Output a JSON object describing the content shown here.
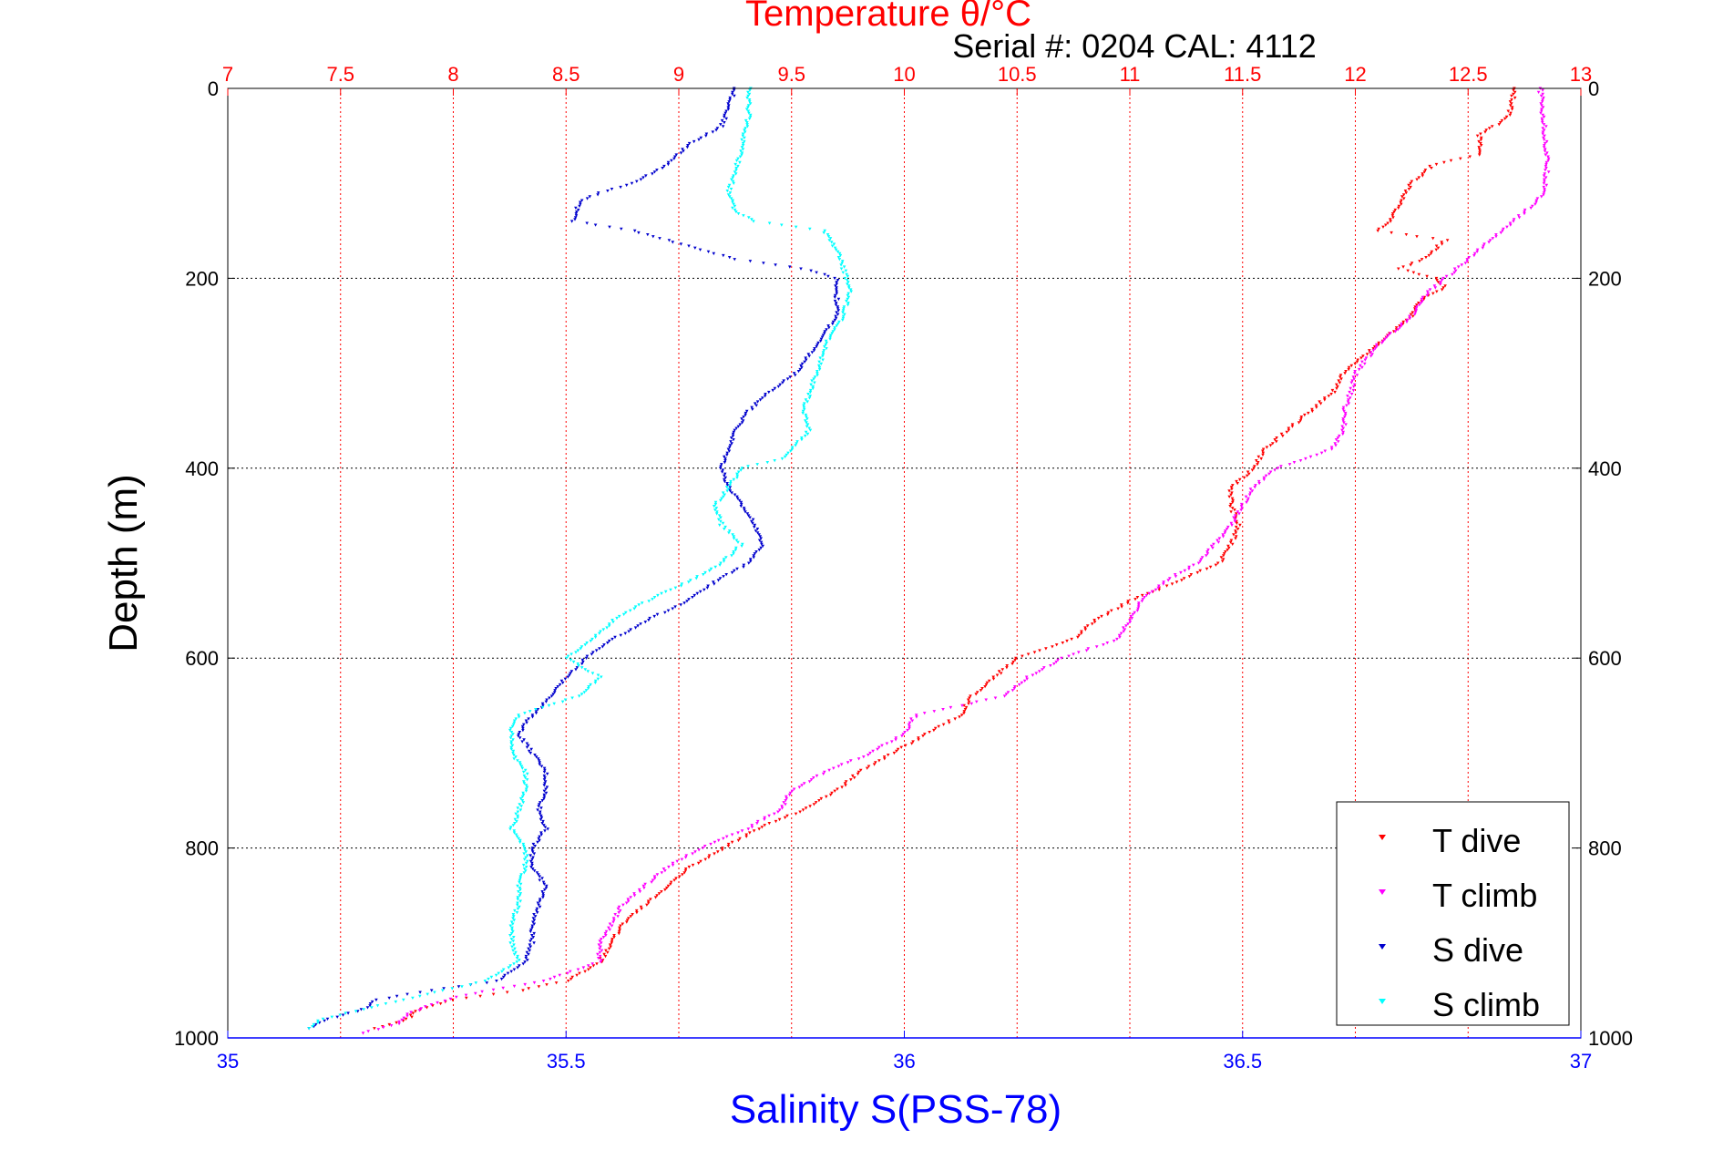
{
  "chart_data": {
    "type": "scatter",
    "title": "Temperature θ/°C",
    "subtitle": "Serial #: 0204  CAL: 4112",
    "ylabel": "Depth (m)",
    "xlabel": "Salinity S(PSS-78)",
    "y_axis": {
      "range": [
        0,
        1000
      ],
      "inverted": true,
      "ticks": [
        0,
        200,
        400,
        600,
        800,
        1000
      ],
      "tick_labels": [
        "0",
        "200",
        "400",
        "600",
        "800",
        "1000"
      ]
    },
    "x_bottom": {
      "label": "Salinity S(PSS-78)",
      "range": [
        35,
        37
      ],
      "ticks": [
        35,
        35.5,
        36,
        36.5,
        37
      ],
      "tick_labels": [
        "35",
        "35.5",
        "36",
        "36.5",
        "37"
      ],
      "color": "#0000ff"
    },
    "x_top": {
      "label": "Temperature θ/°C",
      "range": [
        7,
        13
      ],
      "ticks": [
        7,
        7.5,
        8,
        8.5,
        9,
        9.5,
        10,
        10.5,
        11,
        11.5,
        12,
        12.5,
        13
      ],
      "tick_labels": [
        "7",
        "7.5",
        "8",
        "8.5",
        "9",
        "9.5",
        "10",
        "10.5",
        "11",
        "11.5",
        "12",
        "12.5",
        "13"
      ],
      "color": "#ff0000"
    },
    "grid": true,
    "legend_position": "bottom-right",
    "series": [
      {
        "name": "T dive",
        "axis": "top",
        "color": "#ff0000",
        "points": [
          [
            12.7,
            0
          ],
          [
            12.7,
            10
          ],
          [
            12.68,
            30
          ],
          [
            12.55,
            50
          ],
          [
            12.55,
            70
          ],
          [
            12.35,
            80
          ],
          [
            12.3,
            90
          ],
          [
            12.25,
            100
          ],
          [
            12.2,
            120
          ],
          [
            12.15,
            140
          ],
          [
            12.1,
            150
          ],
          [
            12.4,
            160
          ],
          [
            12.3,
            180
          ],
          [
            12.2,
            190
          ],
          [
            12.35,
            200
          ],
          [
            12.4,
            210
          ],
          [
            12.3,
            220
          ],
          [
            12.25,
            240
          ],
          [
            12.15,
            260
          ],
          [
            12.05,
            280
          ],
          [
            11.95,
            300
          ],
          [
            11.9,
            320
          ],
          [
            11.8,
            340
          ],
          [
            11.7,
            360
          ],
          [
            11.6,
            380
          ],
          [
            11.55,
            400
          ],
          [
            11.45,
            420
          ],
          [
            11.45,
            440
          ],
          [
            11.48,
            460
          ],
          [
            11.45,
            480
          ],
          [
            11.4,
            500
          ],
          [
            11.2,
            520
          ],
          [
            11.0,
            540
          ],
          [
            10.85,
            560
          ],
          [
            10.75,
            580
          ],
          [
            10.5,
            600
          ],
          [
            10.4,
            620
          ],
          [
            10.3,
            640
          ],
          [
            10.25,
            660
          ],
          [
            10.1,
            680
          ],
          [
            9.95,
            700
          ],
          [
            9.8,
            720
          ],
          [
            9.7,
            740
          ],
          [
            9.55,
            760
          ],
          [
            9.35,
            780
          ],
          [
            9.2,
            800
          ],
          [
            9.05,
            820
          ],
          [
            8.95,
            840
          ],
          [
            8.85,
            860
          ],
          [
            8.75,
            880
          ],
          [
            8.7,
            900
          ],
          [
            8.65,
            920
          ],
          [
            8.5,
            940
          ],
          [
            8.3,
            950
          ],
          [
            8.0,
            960
          ],
          [
            7.85,
            970
          ],
          [
            7.8,
            980
          ],
          [
            7.65,
            990
          ]
        ]
      },
      {
        "name": "T climb",
        "axis": "top",
        "color": "#ff00ff",
        "points": [
          [
            12.82,
            0
          ],
          [
            12.83,
            20
          ],
          [
            12.84,
            50
          ],
          [
            12.85,
            80
          ],
          [
            12.84,
            110
          ],
          [
            12.8,
            120
          ],
          [
            12.7,
            140
          ],
          [
            12.6,
            160
          ],
          [
            12.5,
            180
          ],
          [
            12.4,
            200
          ],
          [
            12.3,
            220
          ],
          [
            12.25,
            240
          ],
          [
            12.1,
            270
          ],
          [
            12.0,
            300
          ],
          [
            11.98,
            320
          ],
          [
            11.95,
            340
          ],
          [
            11.95,
            360
          ],
          [
            11.9,
            380
          ],
          [
            11.65,
            400
          ],
          [
            11.55,
            420
          ],
          [
            11.5,
            440
          ],
          [
            11.45,
            460
          ],
          [
            11.38,
            480
          ],
          [
            11.3,
            500
          ],
          [
            11.15,
            520
          ],
          [
            11.05,
            540
          ],
          [
            11.0,
            560
          ],
          [
            10.95,
            580
          ],
          [
            10.7,
            600
          ],
          [
            10.55,
            620
          ],
          [
            10.45,
            640
          ],
          [
            10.05,
            660
          ],
          [
            10.0,
            680
          ],
          [
            9.85,
            700
          ],
          [
            9.65,
            720
          ],
          [
            9.5,
            740
          ],
          [
            9.45,
            760
          ],
          [
            9.3,
            780
          ],
          [
            9.1,
            800
          ],
          [
            8.95,
            820
          ],
          [
            8.85,
            840
          ],
          [
            8.75,
            860
          ],
          [
            8.7,
            880
          ],
          [
            8.65,
            900
          ],
          [
            8.65,
            920
          ],
          [
            8.4,
            940
          ],
          [
            8.05,
            955
          ],
          [
            7.9,
            965
          ],
          [
            7.8,
            975
          ],
          [
            7.75,
            985
          ],
          [
            7.6,
            995
          ]
        ]
      },
      {
        "name": "S dive",
        "axis": "bottom",
        "color": "#0000cd",
        "points": [
          [
            35.75,
            0
          ],
          [
            35.74,
            20
          ],
          [
            35.73,
            40
          ],
          [
            35.68,
            60
          ],
          [
            35.65,
            80
          ],
          [
            35.6,
            100
          ],
          [
            35.55,
            110
          ],
          [
            35.52,
            120
          ],
          [
            35.51,
            140
          ],
          [
            35.6,
            150
          ],
          [
            35.65,
            160
          ],
          [
            35.7,
            170
          ],
          [
            35.75,
            180
          ],
          [
            35.85,
            190
          ],
          [
            35.9,
            200
          ],
          [
            35.9,
            240
          ],
          [
            35.88,
            260
          ],
          [
            35.84,
            300
          ],
          [
            35.8,
            320
          ],
          [
            35.77,
            340
          ],
          [
            35.75,
            360
          ],
          [
            35.74,
            380
          ],
          [
            35.73,
            400
          ],
          [
            35.74,
            420
          ],
          [
            35.76,
            440
          ],
          [
            35.78,
            460
          ],
          [
            35.79,
            480
          ],
          [
            35.77,
            500
          ],
          [
            35.72,
            520
          ],
          [
            35.68,
            540
          ],
          [
            35.62,
            560
          ],
          [
            35.57,
            580
          ],
          [
            35.53,
            600
          ],
          [
            35.5,
            620
          ],
          [
            35.48,
            640
          ],
          [
            35.45,
            660
          ],
          [
            35.43,
            680
          ],
          [
            35.45,
            700
          ],
          [
            35.47,
            720
          ],
          [
            35.47,
            740
          ],
          [
            35.46,
            760
          ],
          [
            35.47,
            780
          ],
          [
            35.45,
            800
          ],
          [
            35.45,
            820
          ],
          [
            35.47,
            840
          ],
          [
            35.46,
            860
          ],
          [
            35.45,
            880
          ],
          [
            35.45,
            900
          ],
          [
            35.44,
            920
          ],
          [
            35.4,
            940
          ],
          [
            35.3,
            950
          ],
          [
            35.22,
            960
          ],
          [
            35.2,
            970
          ],
          [
            35.15,
            980
          ],
          [
            35.12,
            990
          ]
        ]
      },
      {
        "name": "S climb",
        "axis": "bottom",
        "color": "#00ffff",
        "points": [
          [
            35.77,
            0
          ],
          [
            35.77,
            30
          ],
          [
            35.76,
            60
          ],
          [
            35.75,
            90
          ],
          [
            35.74,
            110
          ],
          [
            35.75,
            130
          ],
          [
            35.78,
            140
          ],
          [
            35.88,
            150
          ],
          [
            35.9,
            170
          ],
          [
            35.91,
            190
          ],
          [
            35.92,
            210
          ],
          [
            35.91,
            240
          ],
          [
            35.89,
            260
          ],
          [
            35.88,
            280
          ],
          [
            35.87,
            300
          ],
          [
            35.86,
            320
          ],
          [
            35.85,
            340
          ],
          [
            35.86,
            360
          ],
          [
            35.82,
            390
          ],
          [
            35.76,
            400
          ],
          [
            35.74,
            420
          ],
          [
            35.72,
            440
          ],
          [
            35.73,
            460
          ],
          [
            35.76,
            480
          ],
          [
            35.73,
            500
          ],
          [
            35.68,
            520
          ],
          [
            35.62,
            540
          ],
          [
            35.57,
            560
          ],
          [
            35.54,
            580
          ],
          [
            35.5,
            600
          ],
          [
            35.55,
            620
          ],
          [
            35.52,
            640
          ],
          [
            35.43,
            660
          ],
          [
            35.42,
            670
          ],
          [
            35.42,
            700
          ],
          [
            35.44,
            720
          ],
          [
            35.44,
            740
          ],
          [
            35.43,
            760
          ],
          [
            35.42,
            780
          ],
          [
            35.44,
            800
          ],
          [
            35.44,
            820
          ],
          [
            35.43,
            840
          ],
          [
            35.43,
            860
          ],
          [
            35.42,
            880
          ],
          [
            35.42,
            900
          ],
          [
            35.43,
            920
          ],
          [
            35.38,
            940
          ],
          [
            35.32,
            950
          ],
          [
            35.26,
            960
          ],
          [
            35.2,
            970
          ],
          [
            35.14,
            980
          ],
          [
            35.12,
            990
          ]
        ]
      }
    ]
  }
}
